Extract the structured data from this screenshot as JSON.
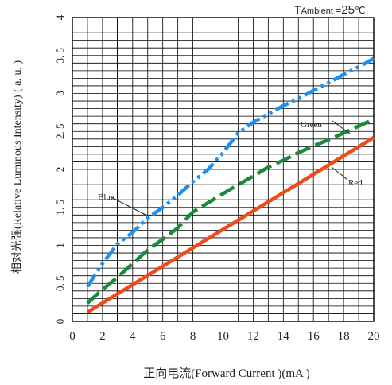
{
  "chart_data": {
    "type": "line",
    "annotation_t": "T",
    "annotation_ambient": "Ambient",
    "annotation_eq": " =",
    "annotation_temp": "25",
    "annotation_unit": "℃",
    "xlabel": "正向电流(Forward  Current )(mA )",
    "ylabel": "相对光强(Relative Luminous Intensity) ( a. u. )",
    "xlim": [
      0,
      20
    ],
    "ylim": [
      0,
      4
    ],
    "x_ticks": [
      0,
      2,
      4,
      6,
      8,
      10,
      12,
      14,
      16,
      18,
      20
    ],
    "y_ticks": [
      0,
      0.5,
      1,
      1.5,
      2,
      2.5,
      3,
      3.5,
      4
    ],
    "x_tick_labels": [
      "0",
      "2",
      "4",
      "6",
      "8",
      "10",
      "12",
      "14",
      "16",
      "18",
      "20"
    ],
    "y_tick_labels": [
      "0",
      "0. 5",
      "1",
      "1. 5",
      "2",
      "2. 5",
      "3",
      "3. 5",
      "4"
    ],
    "series": [
      {
        "name": "Blue",
        "color": "#1e90f0",
        "dash": "dash-dot-dot",
        "x": [
          1,
          2,
          3,
          4,
          5,
          6,
          7,
          8,
          9,
          10,
          11,
          12,
          13,
          14,
          15,
          16,
          17,
          18,
          19,
          20
        ],
        "y": [
          0.46,
          0.76,
          1.02,
          1.17,
          1.36,
          1.5,
          1.66,
          1.84,
          2.0,
          2.22,
          2.48,
          2.62,
          2.73,
          2.84,
          2.93,
          3.04,
          3.14,
          3.25,
          3.35,
          3.46
        ]
      },
      {
        "name": "Green",
        "color": "#1a8a3a",
        "dash": "dash",
        "x": [
          1,
          2,
          3,
          4,
          5,
          6,
          7,
          8,
          9,
          10,
          11,
          12,
          13,
          14,
          15,
          16,
          17,
          18,
          19,
          20
        ],
        "y": [
          0.24,
          0.42,
          0.58,
          0.76,
          0.94,
          1.08,
          1.23,
          1.44,
          1.56,
          1.68,
          1.8,
          1.91,
          2.03,
          2.12,
          2.22,
          2.31,
          2.39,
          2.48,
          2.57,
          2.66
        ]
      },
      {
        "name": "Red",
        "color": "#ee4a1a",
        "dash": "solid",
        "x": [
          1,
          20
        ],
        "y": [
          0.12,
          2.42
        ]
      }
    ]
  }
}
